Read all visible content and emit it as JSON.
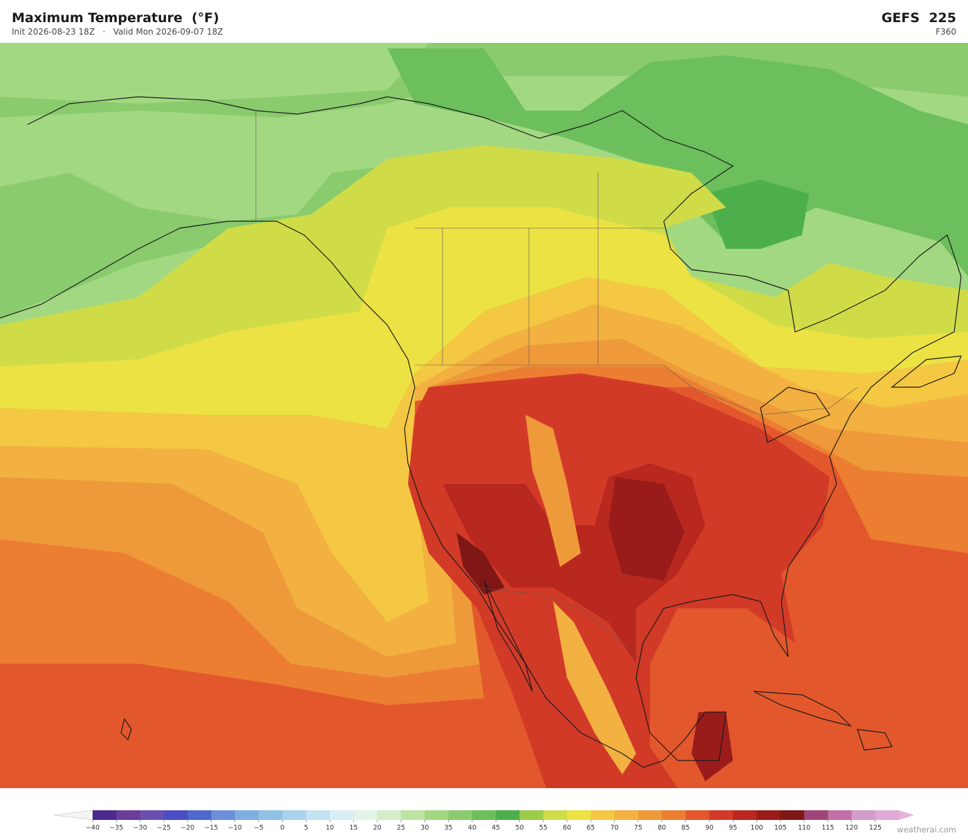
{
  "header": {
    "title": "Maximum Temperature  (°F)",
    "subtitle": "Init 2026-08-23 18Z   ·   Valid Mon 2026-09-07 18Z",
    "model": "GEFS  225",
    "forecast_hour": "F360"
  },
  "colorbar": {
    "ticks": [
      {
        "value": -40,
        "label": "−40"
      },
      {
        "value": -35,
        "label": "−35"
      },
      {
        "value": -30,
        "label": "−30"
      },
      {
        "value": -25,
        "label": "−25"
      },
      {
        "value": -20,
        "label": "−20"
      },
      {
        "value": -15,
        "label": "−15"
      },
      {
        "value": -10,
        "label": "−10"
      },
      {
        "value": -5,
        "label": "−5"
      },
      0,
      5,
      10,
      15,
      20,
      25,
      30,
      35,
      40,
      45,
      50,
      55,
      60,
      65,
      70,
      75,
      80,
      85,
      90,
      95,
      100,
      105,
      110,
      115,
      120,
      125
    ],
    "colors": [
      "#4b2a8c",
      "#6a3d9a",
      "#6b4fb0",
      "#4a4fc4",
      "#4f68cc",
      "#6a8fd8",
      "#7faee0",
      "#92c1e6",
      "#a8d2ee",
      "#c3e2f2",
      "#d9eef4",
      "#e4f3e8",
      "#d4edc8",
      "#bfe3a0",
      "#a3d882",
      "#8acb6e",
      "#6cbf5c",
      "#4caf4c",
      "#9ccb4a",
      "#cfdc48",
      "#ece244",
      "#f4c842",
      "#f2b140",
      "#ef9a3a",
      "#ec7e32",
      "#e2582c",
      "#d23a28",
      "#b8281f",
      "#9a1c1a",
      "#7e1716",
      "#a0457a",
      "#c070a8",
      "#d39ccb",
      "#e0aad8"
    ],
    "under_color": "#f4f4f4",
    "over_color": "#e6b2dc"
  },
  "footer": {
    "watermark": "weatherai.com"
  }
}
